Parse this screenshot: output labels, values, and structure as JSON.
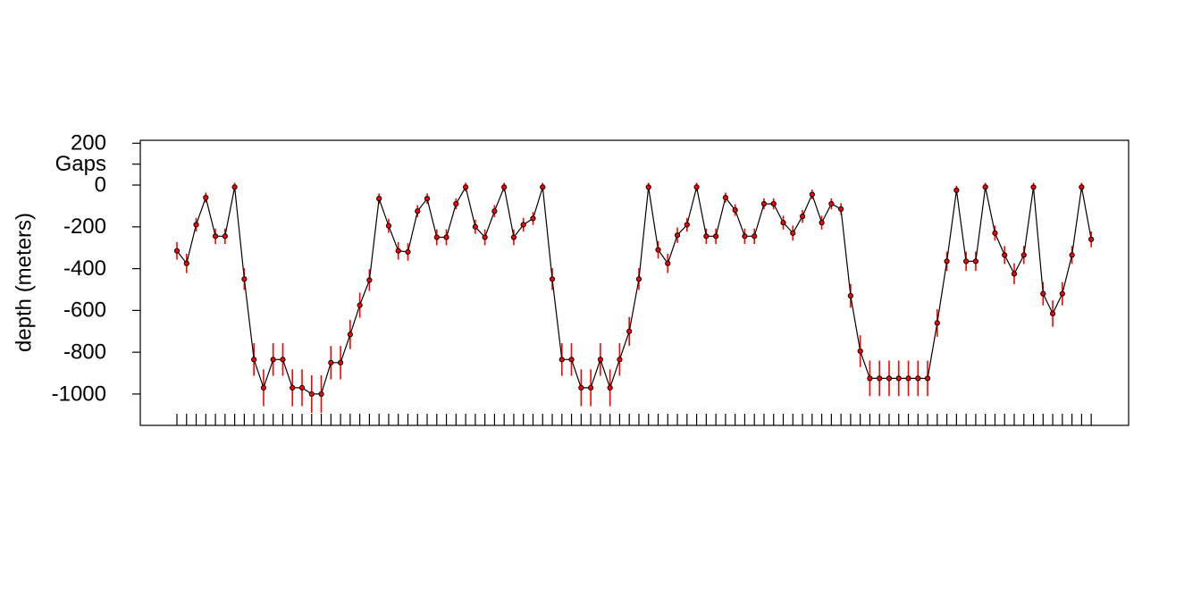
{
  "chart_data": {
    "type": "errorbar_line",
    "ylabel": "depth (meters)",
    "ylim": [
      -1150,
      214
    ],
    "yticks": [
      200,
      {
        "value": 100,
        "label": "Gaps"
      },
      0,
      -200,
      -400,
      -600,
      -800,
      -1000
    ],
    "line_color": "#000000",
    "point_color": "#ff0000",
    "error_color": "#ff0000",
    "values": [
      -315,
      -375,
      -190,
      -60,
      -245,
      -245,
      -10,
      -450,
      -835,
      -970,
      -835,
      -835,
      -970,
      -970,
      -1000,
      -1000,
      -850,
      -850,
      -715,
      -575,
      -455,
      -65,
      -195,
      -315,
      -320,
      -125,
      -65,
      -250,
      -250,
      -90,
      -10,
      -200,
      -250,
      -125,
      -10,
      -250,
      -190,
      -160,
      -10,
      -450,
      -835,
      -835,
      -970,
      -970,
      -835,
      -970,
      -835,
      -700,
      -450,
      -10,
      -310,
      -375,
      -240,
      -190,
      -10,
      -245,
      -245,
      -60,
      -120,
      -245,
      -245,
      -90,
      -90,
      -180,
      -230,
      -150,
      -45,
      -180,
      -90,
      -115,
      -530,
      -795,
      -925,
      -925,
      -925,
      -925,
      -925,
      -925,
      -925,
      -660,
      -365,
      -25,
      -365,
      -365,
      -10,
      -230,
      -335,
      -425,
      -335,
      -10,
      -520,
      -615,
      -520,
      -335,
      -10,
      -260
    ],
    "errors": [
      42,
      46,
      33,
      24,
      37,
      37,
      21,
      52,
      78,
      88,
      78,
      78,
      88,
      88,
      90,
      90,
      80,
      80,
      70,
      60,
      52,
      25,
      34,
      42,
      42,
      29,
      25,
      38,
      38,
      26,
      21,
      34,
      38,
      29,
      21,
      38,
      33,
      31,
      21,
      52,
      78,
      78,
      88,
      88,
      78,
      88,
      78,
      69,
      52,
      21,
      42,
      46,
      37,
      33,
      21,
      37,
      37,
      24,
      28,
      37,
      37,
      26,
      26,
      33,
      36,
      31,
      23,
      33,
      26,
      28,
      57,
      76,
      85,
      85,
      85,
      85,
      85,
      85,
      85,
      66,
      46,
      22,
      46,
      46,
      21,
      36,
      43,
      50,
      43,
      21,
      56,
      63,
      56,
      43,
      21,
      38
    ]
  }
}
